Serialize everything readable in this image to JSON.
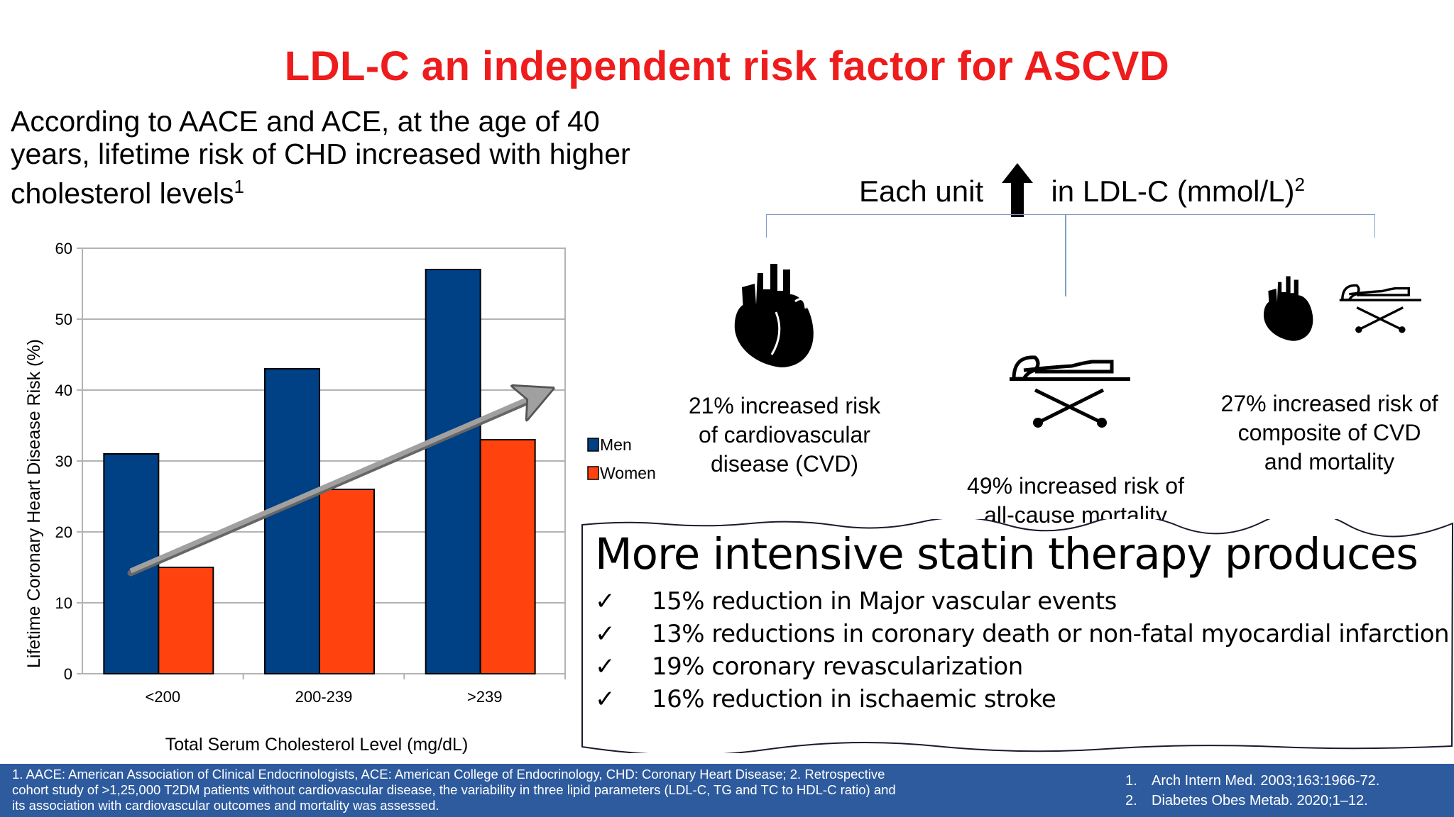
{
  "title": "LDL-C an independent risk factor for ASCVD",
  "intro": {
    "text": "According to AACE and ACE, at the age of 40 years, lifetime risk of CHD increased with higher cholesterol levels",
    "sup": "1"
  },
  "chart_data": {
    "type": "bar",
    "categories": [
      "<200",
      "200-239",
      ">239"
    ],
    "series": [
      {
        "name": "Men",
        "values": [
          31,
          43,
          57
        ],
        "color": "#004085"
      },
      {
        "name": "Women",
        "values": [
          15,
          26,
          33
        ],
        "color": "#ff420e"
      }
    ],
    "xlabel": "Total Serum Cholesterol Level (mg/dL)",
    "ylabel": "Lifetime Coronary Heart Disease Risk (%)",
    "ylim": [
      0,
      60
    ],
    "yticks": [
      "0",
      "10",
      "20",
      "30",
      "40",
      "50",
      "60"
    ],
    "grid": true,
    "legend": "right",
    "trend_arrow": {
      "from": [
        0.3,
        14.5
      ],
      "to": [
        2.85,
        39.5
      ],
      "color": "#a0a0a0"
    }
  },
  "ldl": {
    "prefix": "Each unit",
    "suffix": "in LDL-C (mmol/L)",
    "sup": "2",
    "arrow_icon": "arrow-up-icon"
  },
  "outcomes": {
    "cvd": {
      "line1": "21% increased risk",
      "line2": "of cardiovascular",
      "line3": "disease (CVD)",
      "icon": "heart-icon"
    },
    "mortality": {
      "line1": "49% increased risk of",
      "line2": "all-cause mortality",
      "icon": "stretcher-icon"
    },
    "composite": {
      "line1": "27% increased risk of",
      "line2": "composite of CVD",
      "line3": "and mortality"
    }
  },
  "statin": {
    "heading": "More intensive statin therapy produces",
    "check": "✓",
    "items": [
      "15% reduction in Major vascular events",
      "13% reductions in coronary death or non-fatal myocardial infarction",
      "19% coronary revascularization",
      "16% reduction in ischaemic stroke"
    ]
  },
  "footer": {
    "note": "1. AACE: American Association of Clinical Endocrinologists, ACE: American College of Endocrinology, CHD: Coronary Heart Disease; 2. Retrospective cohort study of >1,25,000 T2DM patients without cardiovascular disease, the variability in three lipid parameters (LDL-C, TG and TC to HDL-C ratio) and its association with cardiovascular outcomes and mortality was assessed.",
    "refs": [
      {
        "num": "1.",
        "text": "Arch Intern Med. 2003;163:1966-72."
      },
      {
        "num": "2.",
        "text": "Diabetes Obes Metab. 2020;1–12."
      }
    ]
  },
  "colors": {
    "title": "#ee1c1c",
    "footer_bg": "#2e5b9e",
    "bracket": "#7f9bc6"
  }
}
